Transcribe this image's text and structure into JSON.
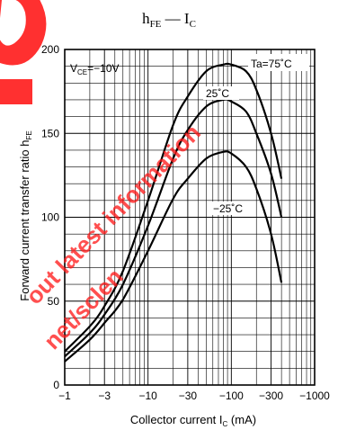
{
  "chart_data": {
    "type": "line",
    "title": {
      "main": "h",
      "main_sub": "FE",
      "dash": " — I",
      "dash_sub": "C"
    },
    "xlabel": {
      "text": "Collector current   I",
      "sub": "C",
      "unit": "   (mA)"
    },
    "ylabel": {
      "text": "Forward current transfer ratio   h",
      "sub": "FE"
    },
    "x_scale": "log",
    "x_axis_direction": "reversed-sign (magnitude increases to the right)",
    "xlim": [
      -1,
      -1000
    ],
    "ylim": [
      0,
      200
    ],
    "x_ticks": [
      {
        "value": -1,
        "label": "−1"
      },
      {
        "value": -3,
        "label": "−3"
      },
      {
        "value": -10,
        "label": "−10"
      },
      {
        "value": -30,
        "label": "−30"
      },
      {
        "value": -100,
        "label": "−100"
      },
      {
        "value": -300,
        "label": "−300"
      },
      {
        "value": -1000,
        "label": "−1000"
      }
    ],
    "y_ticks": [
      {
        "value": 0,
        "label": "0"
      },
      {
        "value": 50,
        "label": "50"
      },
      {
        "value": 100,
        "label": "100"
      },
      {
        "value": 150,
        "label": "150"
      },
      {
        "value": 200,
        "label": "200"
      }
    ],
    "grid": true,
    "condition": {
      "text": "V",
      "sub": "CE",
      "rest": "=−10V"
    },
    "series": [
      {
        "name": "Ta=75˚C",
        "values": [
          [
            -1,
            20
          ],
          [
            -2,
            35
          ],
          [
            -3,
            47
          ],
          [
            -5,
            68
          ],
          [
            -10,
            110
          ],
          [
            -20,
            155
          ],
          [
            -30,
            172
          ],
          [
            -50,
            187
          ],
          [
            -80,
            191
          ],
          [
            -100,
            191
          ],
          [
            -150,
            187
          ],
          [
            -200,
            176
          ],
          [
            -300,
            150
          ],
          [
            -400,
            123
          ]
        ]
      },
      {
        "name": "25˚C",
        "values": [
          [
            -1,
            17
          ],
          [
            -2,
            31
          ],
          [
            -3,
            42
          ],
          [
            -5,
            60
          ],
          [
            -10,
            95
          ],
          [
            -20,
            135
          ],
          [
            -30,
            152
          ],
          [
            -50,
            166
          ],
          [
            -80,
            170
          ],
          [
            -100,
            169
          ],
          [
            -150,
            163
          ],
          [
            -200,
            150
          ],
          [
            -300,
            126
          ],
          [
            -400,
            100
          ]
        ]
      },
      {
        "name": "−25˚C",
        "values": [
          [
            -1,
            14
          ],
          [
            -2,
            27
          ],
          [
            -3,
            37
          ],
          [
            -5,
            51
          ],
          [
            -10,
            80
          ],
          [
            -20,
            111
          ],
          [
            -30,
            123
          ],
          [
            -50,
            135
          ],
          [
            -80,
            139
          ],
          [
            -100,
            138
          ],
          [
            -150,
            130
          ],
          [
            -200,
            117
          ],
          [
            -300,
            90
          ],
          [
            -400,
            61
          ]
        ]
      }
    ]
  },
  "watermark": {
    "lines": [
      "out latest information",
      "net/sclen"
    ],
    "color": "#ff0000",
    "logo_letter": "o"
  }
}
